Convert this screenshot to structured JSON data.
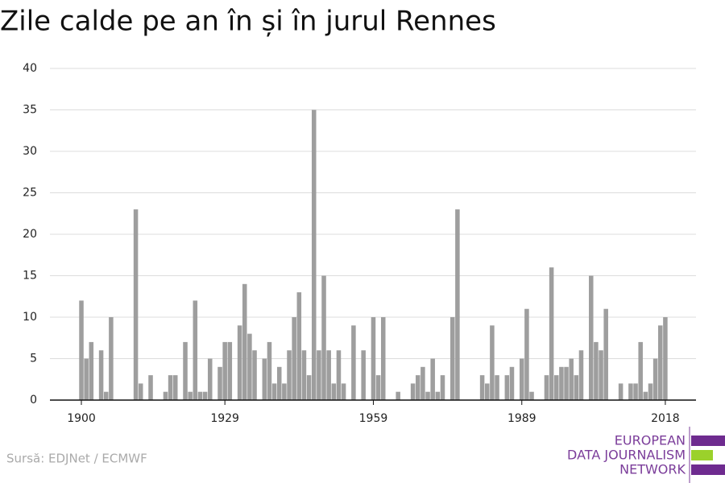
{
  "chart_data": {
    "type": "bar",
    "title": "Zile calde pe an în și în jurul Rennes",
    "source": "Sursă: EDJNet / ECMWF",
    "logo": [
      "EUROPEAN",
      "DATA JOURNALISM",
      "NETWORK"
    ],
    "color": "#9e9e9e",
    "grid": true,
    "x": [
      1900,
      1901,
      1902,
      1903,
      1904,
      1905,
      1906,
      1907,
      1908,
      1909,
      1910,
      1911,
      1912,
      1913,
      1914,
      1915,
      1916,
      1917,
      1918,
      1919,
      1920,
      1921,
      1922,
      1923,
      1924,
      1925,
      1926,
      1927,
      1928,
      1929,
      1930,
      1931,
      1932,
      1933,
      1934,
      1935,
      1936,
      1937,
      1938,
      1939,
      1940,
      1941,
      1942,
      1943,
      1944,
      1945,
      1946,
      1947,
      1948,
      1949,
      1950,
      1951,
      1952,
      1953,
      1954,
      1955,
      1956,
      1957,
      1958,
      1959,
      1960,
      1961,
      1962,
      1963,
      1964,
      1965,
      1966,
      1967,
      1968,
      1969,
      1970,
      1971,
      1972,
      1973,
      1974,
      1975,
      1976,
      1977,
      1978,
      1979,
      1980,
      1981,
      1982,
      1983,
      1984,
      1985,
      1986,
      1987,
      1988,
      1989,
      1990,
      1991,
      1992,
      1993,
      1994,
      1995,
      1996,
      1997,
      1998,
      1999,
      2000,
      2001,
      2002,
      2003,
      2004,
      2005,
      2006,
      2007,
      2008,
      2009,
      2010,
      2011,
      2012,
      2013,
      2014,
      2015,
      2016,
      2017,
      2018
    ],
    "values": [
      12,
      5,
      7,
      0,
      6,
      1,
      10,
      0,
      0,
      0,
      0,
      23,
      2,
      0,
      3,
      0,
      0,
      1,
      3,
      3,
      0,
      7,
      1,
      12,
      1,
      1,
      5,
      0,
      4,
      7,
      7,
      0,
      9,
      14,
      8,
      6,
      0,
      5,
      7,
      2,
      4,
      2,
      6,
      10,
      13,
      6,
      3,
      35,
      6,
      15,
      6,
      2,
      6,
      2,
      0,
      9,
      0,
      6,
      0,
      10,
      3,
      10,
      0,
      0,
      1,
      0,
      0,
      2,
      3,
      4,
      1,
      5,
      1,
      3,
      0,
      10,
      23,
      0,
      0,
      0,
      0,
      3,
      2,
      9,
      3,
      0,
      3,
      4,
      0,
      5,
      11,
      1,
      0,
      0,
      3,
      16,
      3,
      4,
      4,
      5,
      3,
      6,
      0,
      15,
      7,
      6,
      11,
      0,
      0,
      2,
      0,
      2,
      2,
      7,
      1,
      2,
      5,
      9,
      10
    ],
    "xlim": [
      1893.65,
      2024.2
    ],
    "xticks": [
      1900,
      1929,
      1959,
      1989,
      2018
    ],
    "ylim": [
      0,
      40
    ],
    "yticks": [
      0,
      5,
      10,
      15,
      20,
      25,
      30,
      35,
      40
    ]
  }
}
